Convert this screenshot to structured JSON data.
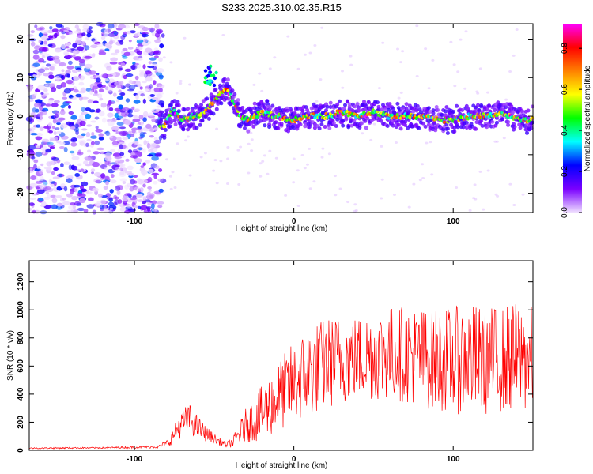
{
  "title": "S233.2025.310.02.35.R15",
  "chart_data": [
    {
      "type": "heatmap",
      "xlabel": "Height of straight line (km)",
      "ylabel": "Frequency (Hz)",
      "xlim": [
        -166,
        150
      ],
      "ylim": [
        -25,
        24
      ],
      "xticks": [
        -100,
        0,
        100
      ],
      "yticks": [
        -20,
        -10,
        0,
        10,
        20
      ],
      "colorbar": {
        "label": "Normalized spectral amplitude",
        "range": [
          0.0,
          0.92
        ],
        "ticks": [
          "0.0",
          "0.2",
          "0.4",
          "0.6",
          "0.8"
        ],
        "colors": [
          "#f0e0ff",
          "#7a00ff",
          "#0000ff",
          "#00ffff",
          "#00ff00",
          "#ffff00",
          "#ff8000",
          "#ff0000",
          "#ff00ff"
        ]
      },
      "ridge": {
        "x": [
          -82,
          -76,
          -70,
          -64,
          -58,
          -52,
          -46,
          -42,
          -38,
          -34,
          -30,
          -20,
          -10,
          0,
          10,
          20,
          30,
          40,
          50,
          60,
          70,
          80,
          90,
          100,
          110,
          120,
          130,
          140,
          150
        ],
        "y": [
          -3,
          2,
          -1,
          0,
          0,
          3,
          6,
          7,
          4,
          0,
          -1,
          1,
          0,
          -1,
          0,
          0,
          1,
          0,
          1,
          0,
          0,
          0,
          -1,
          -1,
          0,
          0,
          1,
          -1,
          -1
        ]
      }
    },
    {
      "type": "line",
      "xlabel": "Height of straight line (km)",
      "ylabel": "SNR (10 * v/v)",
      "xlim": [
        -166,
        150
      ],
      "ylim": [
        0,
        1350
      ],
      "xticks": [
        -100,
        0,
        100
      ],
      "yticks": [
        0,
        200,
        400,
        600,
        800,
        1000,
        1200
      ],
      "color": "#ff0000",
      "envelope": {
        "x": [
          -166,
          -120,
          -85,
          -78,
          -72,
          -66,
          -60,
          -54,
          -48,
          -42,
          -38,
          -30,
          -20,
          -10,
          0,
          10,
          20,
          30,
          40,
          50,
          60,
          70,
          80,
          90,
          100,
          110,
          120,
          130,
          140,
          150
        ],
        "y": [
          15,
          18,
          25,
          60,
          170,
          230,
          160,
          110,
          70,
          40,
          60,
          180,
          260,
          380,
          480,
          560,
          620,
          650,
          660,
          680,
          690,
          690,
          660,
          650,
          640,
          650,
          640,
          650,
          660,
          650
        ],
        "spread": [
          5,
          5,
          10,
          30,
          90,
          110,
          80,
          50,
          30,
          20,
          40,
          120,
          200,
          250,
          300,
          330,
          330,
          320,
          300,
          330,
          340,
          350,
          360,
          370,
          380,
          400,
          390,
          380,
          400,
          380
        ]
      }
    }
  ]
}
